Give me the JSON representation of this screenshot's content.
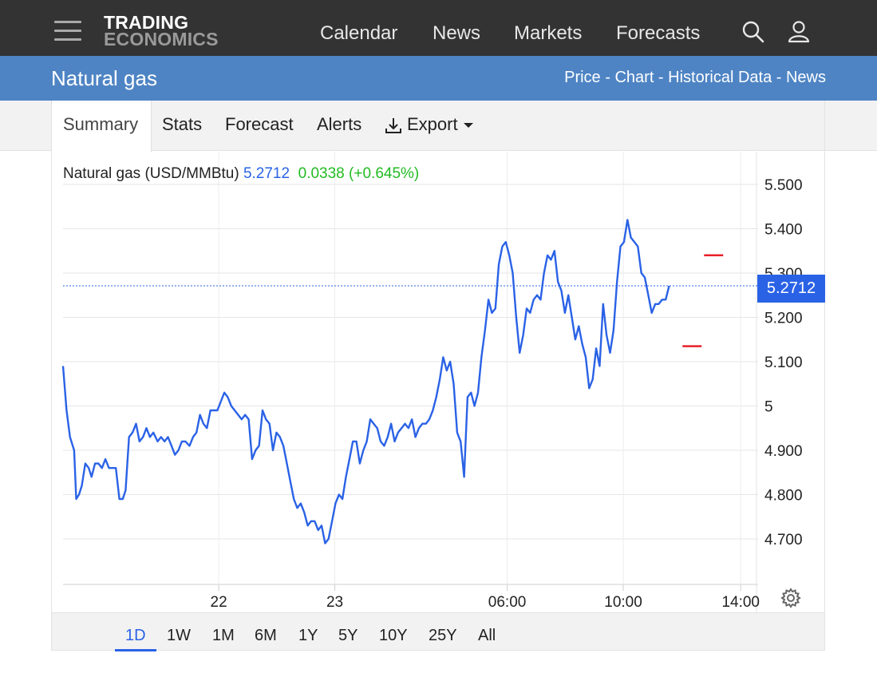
{
  "nav": {
    "logo_line1": "TRADING",
    "logo_line2": "ECONOMICS",
    "links": [
      "Calendar",
      "News",
      "Markets",
      "Forecasts"
    ],
    "icons": [
      "menu-icon",
      "search-icon",
      "user-icon"
    ]
  },
  "header": {
    "title": "Natural gas",
    "sublinks": [
      "Price",
      "Chart",
      "Historical Data",
      "News"
    ],
    "separator": " - "
  },
  "tabs": {
    "summary": "Summary",
    "stats": "Stats",
    "forecast": "Forecast",
    "alerts": "Alerts",
    "export": "Export"
  },
  "chart_legend": {
    "name": "Natural gas (USD/MMBtu)",
    "price": "5.2712",
    "change": "0.0338",
    "change_pct": "(+0.645%)"
  },
  "ranges": [
    "1D",
    "1W",
    "1M",
    "6M",
    "1Y",
    "5Y",
    "10Y",
    "25Y",
    "All"
  ],
  "active_range": "1D",
  "colors": {
    "line": "#2a62e6",
    "positive": "#22bb22",
    "marker": "#e8202a",
    "header_bg": "#4e84c4",
    "nav_bg": "#333333"
  },
  "chart_data": {
    "type": "line",
    "title": "Natural gas (USD/MMBtu)",
    "current_value": 5.2712,
    "current_value_label": "5.2712",
    "ylim": [
      4.6,
      5.55
    ],
    "y_ticks": [
      4.7,
      4.8,
      4.9,
      5.0,
      5.1,
      5.2,
      5.3,
      5.4,
      5.5
    ],
    "y_tick_labels": [
      "4.700",
      "4.800",
      "4.900",
      "5",
      "5.100",
      "5.200",
      "5.300",
      "5.400",
      "5.500"
    ],
    "x_ticks": [
      {
        "t": 0.224,
        "label": "22"
      },
      {
        "t": 0.391,
        "label": "23"
      },
      {
        "t": 0.639,
        "label": "06:00"
      },
      {
        "t": 0.806,
        "label": "10:00"
      },
      {
        "t": 0.975,
        "label": "14:00"
      }
    ],
    "grid": true,
    "markers": [
      {
        "t": 0.905,
        "y": 5.135
      },
      {
        "t": 0.936,
        "y": 5.34
      }
    ],
    "series": [
      {
        "points": [
          [
            0.0,
            5.09
          ],
          [
            0.005,
            4.99
          ],
          [
            0.01,
            4.93
          ],
          [
            0.016,
            4.9
          ],
          [
            0.019,
            4.79
          ],
          [
            0.023,
            4.8
          ],
          [
            0.027,
            4.82
          ],
          [
            0.032,
            4.87
          ],
          [
            0.037,
            4.86
          ],
          [
            0.041,
            4.84
          ],
          [
            0.046,
            4.87
          ],
          [
            0.051,
            4.87
          ],
          [
            0.056,
            4.86
          ],
          [
            0.061,
            4.88
          ],
          [
            0.066,
            4.86
          ],
          [
            0.071,
            4.86
          ],
          [
            0.076,
            4.86
          ],
          [
            0.081,
            4.79
          ],
          [
            0.086,
            4.79
          ],
          [
            0.09,
            4.81
          ],
          [
            0.095,
            4.93
          ],
          [
            0.1,
            4.94
          ],
          [
            0.105,
            4.96
          ],
          [
            0.11,
            4.92
          ],
          [
            0.115,
            4.93
          ],
          [
            0.12,
            4.95
          ],
          [
            0.125,
            4.93
          ],
          [
            0.13,
            4.94
          ],
          [
            0.136,
            4.92
          ],
          [
            0.141,
            4.93
          ],
          [
            0.146,
            4.92
          ],
          [
            0.151,
            4.93
          ],
          [
            0.156,
            4.91
          ],
          [
            0.161,
            4.89
          ],
          [
            0.166,
            4.9
          ],
          [
            0.171,
            4.92
          ],
          [
            0.176,
            4.92
          ],
          [
            0.182,
            4.91
          ],
          [
            0.187,
            4.93
          ],
          [
            0.192,
            4.94
          ],
          [
            0.197,
            4.98
          ],
          [
            0.202,
            4.96
          ],
          [
            0.207,
            4.95
          ],
          [
            0.212,
            4.99
          ],
          [
            0.217,
            4.99
          ],
          [
            0.222,
            4.99
          ],
          [
            0.227,
            5.01
          ],
          [
            0.232,
            5.03
          ],
          [
            0.237,
            5.02
          ],
          [
            0.242,
            5.0
          ],
          [
            0.247,
            4.99
          ],
          [
            0.252,
            4.98
          ],
          [
            0.257,
            4.97
          ],
          [
            0.262,
            4.98
          ],
          [
            0.267,
            4.97
          ],
          [
            0.272,
            4.88
          ],
          [
            0.277,
            4.9
          ],
          [
            0.282,
            4.91
          ],
          [
            0.287,
            4.99
          ],
          [
            0.292,
            4.97
          ],
          [
            0.297,
            4.96
          ],
          [
            0.302,
            4.9
          ],
          [
            0.307,
            4.94
          ],
          [
            0.312,
            4.93
          ],
          [
            0.317,
            4.91
          ],
          [
            0.322,
            4.87
          ],
          [
            0.327,
            4.83
          ],
          [
            0.332,
            4.79
          ],
          [
            0.337,
            4.77
          ],
          [
            0.342,
            4.78
          ],
          [
            0.347,
            4.76
          ],
          [
            0.352,
            4.73
          ],
          [
            0.357,
            4.74
          ],
          [
            0.362,
            4.74
          ],
          [
            0.367,
            4.72
          ],
          [
            0.372,
            4.73
          ],
          [
            0.377,
            4.69
          ],
          [
            0.382,
            4.7
          ],
          [
            0.387,
            4.74
          ],
          [
            0.392,
            4.78
          ],
          [
            0.397,
            4.8
          ],
          [
            0.402,
            4.79
          ],
          [
            0.407,
            4.84
          ],
          [
            0.412,
            4.88
          ],
          [
            0.417,
            4.92
          ],
          [
            0.422,
            4.92
          ],
          [
            0.427,
            4.87
          ],
          [
            0.432,
            4.9
          ],
          [
            0.437,
            4.92
          ],
          [
            0.442,
            4.97
          ],
          [
            0.447,
            4.96
          ],
          [
            0.452,
            4.95
          ],
          [
            0.457,
            4.92
          ],
          [
            0.462,
            4.91
          ],
          [
            0.467,
            4.93
          ],
          [
            0.472,
            4.96
          ],
          [
            0.477,
            4.92
          ],
          [
            0.482,
            4.94
          ],
          [
            0.487,
            4.95
          ],
          [
            0.492,
            4.96
          ],
          [
            0.497,
            4.95
          ],
          [
            0.502,
            4.97
          ],
          [
            0.507,
            4.93
          ],
          [
            0.512,
            4.95
          ],
          [
            0.517,
            4.96
          ],
          [
            0.522,
            4.96
          ],
          [
            0.527,
            4.97
          ],
          [
            0.532,
            4.99
          ],
          [
            0.537,
            5.02
          ],
          [
            0.542,
            5.06
          ],
          [
            0.547,
            5.11
          ],
          [
            0.552,
            5.08
          ],
          [
            0.557,
            5.1
          ],
          [
            0.562,
            5.05
          ],
          [
            0.567,
            4.94
          ],
          [
            0.572,
            4.92
          ],
          [
            0.577,
            4.84
          ],
          [
            0.582,
            5.02
          ],
          [
            0.587,
            5.03
          ],
          [
            0.592,
            5.0
          ],
          [
            0.597,
            5.03
          ],
          [
            0.602,
            5.11
          ],
          [
            0.607,
            5.17
          ],
          [
            0.612,
            5.24
          ],
          [
            0.617,
            5.21
          ],
          [
            0.622,
            5.22
          ],
          [
            0.627,
            5.32
          ],
          [
            0.632,
            5.36
          ],
          [
            0.637,
            5.37
          ],
          [
            0.642,
            5.34
          ],
          [
            0.647,
            5.3
          ],
          [
            0.652,
            5.2
          ],
          [
            0.657,
            5.12
          ],
          [
            0.662,
            5.16
          ],
          [
            0.667,
            5.22
          ],
          [
            0.672,
            5.21
          ],
          [
            0.677,
            5.24
          ],
          [
            0.682,
            5.25
          ],
          [
            0.687,
            5.24
          ],
          [
            0.692,
            5.3
          ],
          [
            0.697,
            5.34
          ],
          [
            0.702,
            5.33
          ],
          [
            0.707,
            5.35
          ],
          [
            0.712,
            5.28
          ],
          [
            0.717,
            5.26
          ],
          [
            0.722,
            5.21
          ],
          [
            0.727,
            5.25
          ],
          [
            0.732,
            5.2
          ],
          [
            0.737,
            5.15
          ],
          [
            0.742,
            5.18
          ],
          [
            0.747,
            5.14
          ],
          [
            0.752,
            5.11
          ],
          [
            0.757,
            5.04
          ],
          [
            0.762,
            5.06
          ],
          [
            0.767,
            5.13
          ],
          [
            0.772,
            5.09
          ],
          [
            0.777,
            5.23
          ],
          [
            0.782,
            5.16
          ],
          [
            0.787,
            5.12
          ],
          [
            0.792,
            5.17
          ],
          [
            0.797,
            5.28
          ],
          [
            0.802,
            5.36
          ],
          [
            0.807,
            5.37
          ],
          [
            0.812,
            5.42
          ],
          [
            0.817,
            5.38
          ],
          [
            0.822,
            5.37
          ],
          [
            0.827,
            5.36
          ],
          [
            0.832,
            5.3
          ],
          [
            0.837,
            5.29
          ],
          [
            0.842,
            5.25
          ],
          [
            0.847,
            5.21
          ],
          [
            0.852,
            5.23
          ],
          [
            0.857,
            5.23
          ],
          [
            0.862,
            5.24
          ],
          [
            0.867,
            5.24
          ],
          [
            0.872,
            5.271
          ]
        ]
      }
    ]
  }
}
